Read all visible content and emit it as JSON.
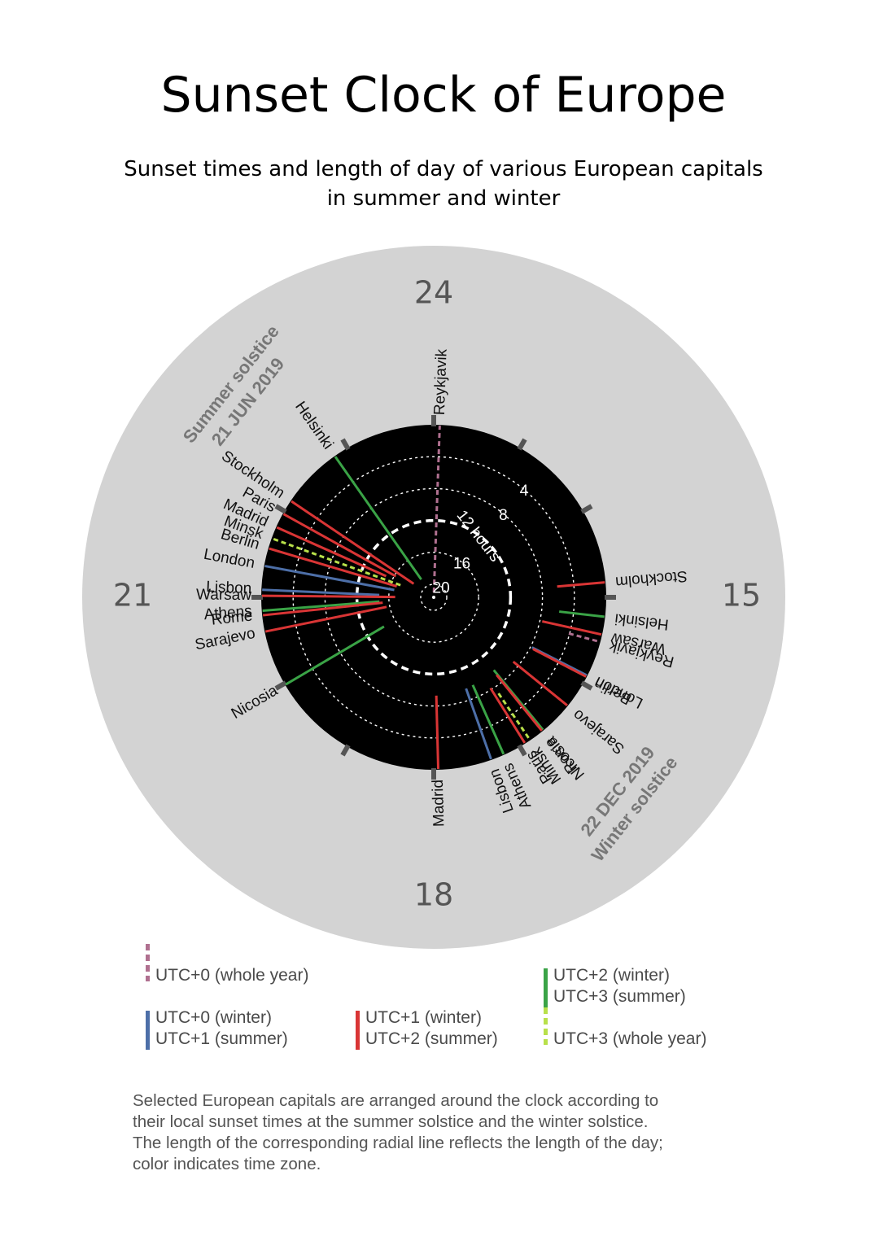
{
  "title": "Sunset Clock of Europe",
  "subtitle": {
    "line1": "Sunset times and length of day of various European capitals",
    "line2": "in summer and winter"
  },
  "colors": {
    "utc0_whole_year": "#b07090",
    "utc0_winter": "#4d6fa8",
    "utc1_winter": "#d93535",
    "utc2_winter": "#3aa346",
    "utc3_whole_year": "#b8e04a",
    "outer_ring": "#d3d3d3",
    "clock_face": "#000000"
  },
  "chart_data": {
    "type": "radial",
    "hour_labels": {
      "top": "24",
      "right": "15",
      "bottom": "18",
      "left": "21"
    },
    "ring_labels": [
      "4",
      "8",
      "12 hours",
      "16",
      "20"
    ],
    "summer_label": {
      "line1": "Summer solstice",
      "line2": "21 JUN 2019"
    },
    "winter_label": {
      "line1": "22 DEC 2019",
      "line2": "Winter solstice"
    },
    "series": [
      {
        "season": "summer",
        "date": "21 JUN 2019",
        "cities": [
          {
            "name": "Reykjavik",
            "zone": "utc0_whole_year",
            "sunset": "24:04",
            "day_length": 21.1
          },
          {
            "name": "Helsinki",
            "zone": "utc2_winter",
            "sunset": "22:50",
            "day_length": 18.9
          },
          {
            "name": "Stockholm",
            "zone": "utc1_winter",
            "sunset": "22:08",
            "day_length": 18.6
          },
          {
            "name": "Paris",
            "zone": "utc1_winter",
            "sunset": "21:58",
            "day_length": 16.2
          },
          {
            "name": "Madrid",
            "zone": "utc1_winter",
            "sunset": "21:48",
            "day_length": 15.1
          },
          {
            "name": "Minsk",
            "zone": "utc3_whole_year",
            "sunset": "21:40",
            "day_length": 17.2
          },
          {
            "name": "Berlin",
            "zone": "utc1_winter",
            "sunset": "21:33",
            "day_length": 16.8
          },
          {
            "name": "London",
            "zone": "utc0_winter",
            "sunset": "21:21",
            "day_length": 16.6
          },
          {
            "name": "Lisbon",
            "zone": "utc0_winter",
            "sunset": "21:05",
            "day_length": 14.8
          },
          {
            "name": "Warsaw",
            "zone": "utc1_winter",
            "sunset": "21:01",
            "day_length": 16.8
          },
          {
            "name": "Athens",
            "zone": "utc2_winter",
            "sunset": "20:51",
            "day_length": 14.8
          },
          {
            "name": "Rome",
            "zone": "utc1_winter",
            "sunset": "20:48",
            "day_length": 15.2
          },
          {
            "name": "Sarajevo",
            "zone": "utc1_winter",
            "sunset": "20:37",
            "day_length": 15.6
          },
          {
            "name": "Nicosia",
            "zone": "utc2_winter",
            "sunset": "19:59",
            "day_length": 14.4
          }
        ]
      },
      {
        "season": "winter",
        "date": "22 DEC 2019",
        "cities": [
          {
            "name": "Stockholm",
            "zone": "utc1_winter",
            "sunset": "14:50",
            "day_length": 6.1
          },
          {
            "name": "Helsinki",
            "zone": "utc2_winter",
            "sunset": "15:13",
            "day_length": 5.8
          },
          {
            "name": "Warsaw",
            "zone": "utc1_winter",
            "sunset": "15:25",
            "day_length": 7.7
          },
          {
            "name": "Reykjavik",
            "zone": "utc0_whole_year",
            "sunset": "15:30",
            "day_length": 4.1
          },
          {
            "name": "London",
            "zone": "utc0_winter",
            "sunset": "15:54",
            "day_length": 7.8
          },
          {
            "name": "Berlin",
            "zone": "utc1_winter",
            "sunset": "15:55",
            "day_length": 7.6
          },
          {
            "name": "Sarajevo",
            "zone": "utc1_winter",
            "sunset": "16:18",
            "day_length": 8.8
          },
          {
            "name": "Nicosia",
            "zone": "utc2_winter",
            "sunset": "16:41",
            "day_length": 9.8
          },
          {
            "name": "Rome",
            "zone": "utc1_winter",
            "sunset": "16:42",
            "day_length": 9.1
          },
          {
            "name": "Minsk",
            "zone": "utc3_whole_year",
            "sunset": "16:52",
            "day_length": 7.1
          },
          {
            "name": "Paris",
            "zone": "utc1_winter",
            "sunset": "16:56",
            "day_length": 8.2
          },
          {
            "name": "Athens",
            "zone": "utc2_winter",
            "sunset": "17:12",
            "day_length": 9.6
          },
          {
            "name": "Lisbon",
            "zone": "utc0_winter",
            "sunset": "17:21",
            "day_length": 9.5
          },
          {
            "name": "Madrid",
            "zone": "utc1_winter",
            "sunset": "17:57",
            "day_length": 9.3
          }
        ]
      }
    ]
  },
  "legend": {
    "utc0_whole_year": "UTC+0 (whole year)",
    "utc0_winter": {
      "line1": "UTC+0 (winter)",
      "line2": "UTC+1 (summer)"
    },
    "utc1_winter": {
      "line1": "UTC+1 (winter)",
      "line2": "UTC+2 (summer)"
    },
    "utc2_winter": {
      "line1": "UTC+2 (winter)",
      "line2": "UTC+3 (summer)"
    },
    "utc3_whole_year": "UTC+3 (whole year)"
  },
  "note": {
    "line1": "Selected European capitals are arranged around the clock according to",
    "line2": "their local sunset times at the summer solstice and the winter solstice.",
    "line3": "The length of the corresponding radial line reflects the length of the day;",
    "line4": "color indicates time zone."
  }
}
